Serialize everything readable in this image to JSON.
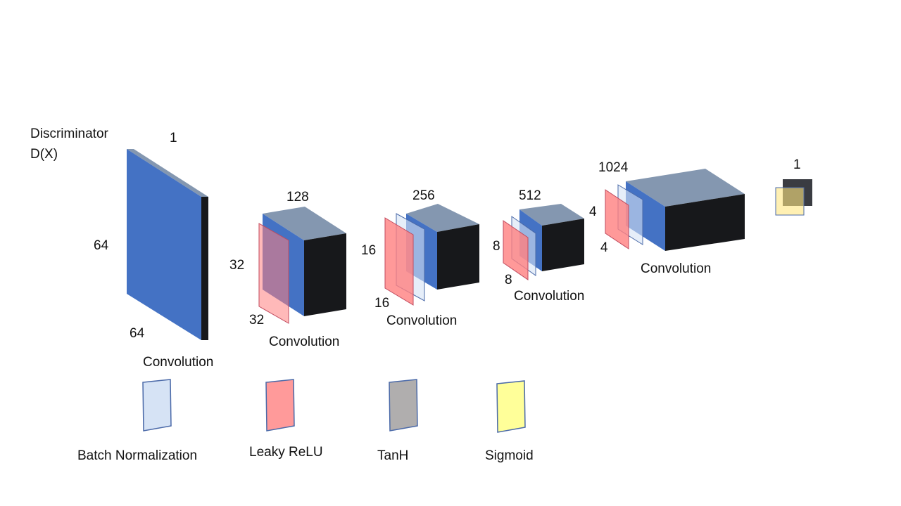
{
  "title": {
    "line1": "Discriminator",
    "line2": "D(X)"
  },
  "stages": [
    {
      "name": "input",
      "label": "Convolution",
      "depth": "1",
      "height": "64",
      "width": "64"
    },
    {
      "name": "conv1",
      "label": "Convolution",
      "depth": "128",
      "height": "32",
      "width": "32"
    },
    {
      "name": "conv2",
      "label": "Convolution",
      "depth": "256",
      "height": "16",
      "width": "16"
    },
    {
      "name": "conv3",
      "label": "Convolution",
      "depth": "512",
      "height": "8",
      "width": "8"
    },
    {
      "name": "conv4",
      "label": "Convolution",
      "depth": "1024",
      "height": "4",
      "width": "4"
    },
    {
      "name": "output",
      "depth": "1"
    }
  ],
  "legend": [
    {
      "label": "Batch Normalization",
      "color": "#d6e3f5"
    },
    {
      "label": "Leaky ReLU",
      "color": "#ff9a9a"
    },
    {
      "label": "TanH",
      "color": "#b0aeae"
    },
    {
      "label": "Sigmoid",
      "color": "#ffff99"
    }
  ],
  "colors": {
    "face_blue": "#4472c4",
    "top_gray": "#8497b0",
    "side_black": "#17181b",
    "leaky_relu": "#ff8080",
    "batch_norm": "#d6e3f5",
    "outline": "#4a69a8",
    "output_dark": "#3a3c42",
    "sigmoid": "#ffe680"
  }
}
